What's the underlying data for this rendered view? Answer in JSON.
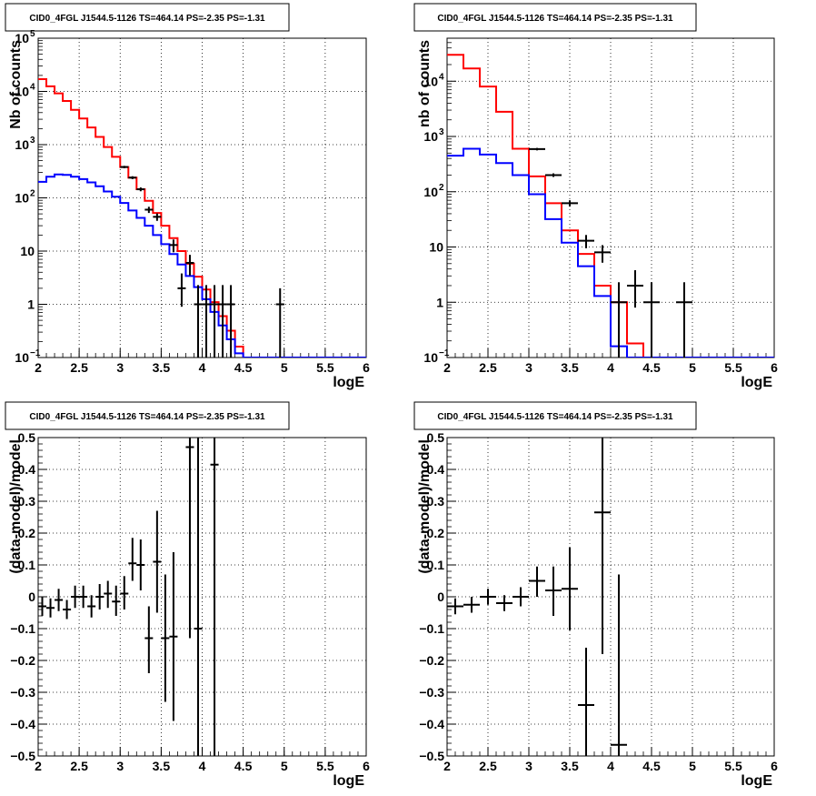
{
  "chart_data": [
    {
      "type": "histogram",
      "title": "CID0_4FGL J1544.5-1126 TS=464.14 PS=-2.35 PS=-1.31",
      "xlabel": "logE",
      "ylabel": "Nb of counts",
      "xlim": [
        2,
        6
      ],
      "ylim": [
        0.1,
        100000
      ],
      "yscale": "log",
      "grid": true,
      "x_ticks": [
        "2",
        "2.5",
        "3",
        "3.5",
        "4",
        "4.5",
        "5",
        "5.5",
        "6"
      ],
      "y_ticks": [
        {
          "value": 0.1,
          "base": "10",
          "exp": "−1"
        },
        {
          "value": 1,
          "base": "1",
          "exp": ""
        },
        {
          "value": 10,
          "base": "10",
          "exp": ""
        },
        {
          "value": 100,
          "base": "10",
          "exp": "2"
        },
        {
          "value": 1000,
          "base": "10",
          "exp": "3"
        },
        {
          "value": 10000,
          "base": "10",
          "exp": "4"
        },
        {
          "value": 100000,
          "base": "10",
          "exp": "5"
        }
      ],
      "bin_edges": [
        2.0,
        2.1,
        2.2,
        2.3,
        2.4,
        2.5,
        2.6,
        2.7,
        2.8,
        2.9,
        3.0,
        3.1,
        3.2,
        3.3,
        3.4,
        3.5,
        3.6,
        3.7,
        3.8,
        3.9,
        4.0,
        4.1,
        4.2,
        4.3,
        4.4,
        4.5,
        4.6,
        4.7,
        4.8,
        4.9,
        5.0,
        5.1,
        5.2,
        5.3,
        5.4,
        5.5,
        5.6,
        5.7,
        5.8,
        5.9,
        6.0
      ],
      "series": [
        {
          "name": "",
          "color": "#ff0000",
          "kind": "step",
          "values": [
            17000,
            12500,
            9200,
            6600,
            4500,
            3100,
            2100,
            1400,
            900,
            590,
            380,
            240,
            145,
            88,
            52,
            30,
            17.5,
            10,
            5.8,
            3.3,
            1.9,
            1.1,
            0.6,
            0.32,
            0.16,
            0.1,
            0.1,
            0.1,
            0.1,
            0.1,
            0.1,
            0.1,
            0.1,
            0.1,
            0.1,
            0.1,
            0.1,
            0.1,
            0.1,
            0.1
          ]
        },
        {
          "name": "",
          "color": "#0000ff",
          "kind": "step",
          "values": [
            200,
            250,
            275,
            270,
            250,
            225,
            195,
            165,
            132,
            105,
            80,
            58,
            42,
            30,
            20,
            13.5,
            8.8,
            5.6,
            3.4,
            2.1,
            1.25,
            0.72,
            0.4,
            0.22,
            0.12,
            0.1,
            0.1,
            0.1,
            0.1,
            0.1,
            0.1,
            0.1,
            0.1,
            0.1,
            0.1,
            0.1,
            0.1,
            0.1,
            0.1,
            0.1
          ]
        },
        {
          "name": "",
          "color": "#000000",
          "kind": "errorbar",
          "points": [
            {
              "x": 3.05,
              "y": 380,
              "lo": 360,
              "hi": 400
            },
            {
              "x": 3.15,
              "y": 240,
              "lo": 225,
              "hi": 255
            },
            {
              "x": 3.25,
              "y": 145,
              "lo": 133,
              "hi": 157
            },
            {
              "x": 3.35,
              "y": 60,
              "lo": 52,
              "hi": 68
            },
            {
              "x": 3.45,
              "y": 44,
              "lo": 37,
              "hi": 51
            },
            {
              "x": 3.65,
              "y": 13,
              "lo": 9.5,
              "hi": 16.5
            },
            {
              "x": 3.75,
              "y": 2,
              "lo": 0.9,
              "hi": 3.8
            },
            {
              "x": 3.85,
              "y": 6,
              "lo": 3.5,
              "hi": 8.5
            },
            {
              "x": 3.95,
              "y": 1,
              "lo": 0.1,
              "hi": 2.3
            },
            {
              "x": 4.05,
              "y": 1,
              "lo": 0.1,
              "hi": 2.3
            },
            {
              "x": 4.15,
              "y": 1,
              "lo": 0.1,
              "hi": 2.3
            },
            {
              "x": 4.25,
              "y": 1,
              "lo": 0.1,
              "hi": 2.3
            },
            {
              "x": 4.35,
              "y": 1,
              "lo": 0.1,
              "hi": 2.3
            },
            {
              "x": 4.95,
              "y": 1,
              "lo": 0.1,
              "hi": 2.0
            }
          ]
        }
      ]
    },
    {
      "type": "histogram",
      "title": "CID0_4FGL J1544.5-1126 TS=464.14 PS=-2.35 PS=-1.31",
      "xlabel": "logE",
      "ylabel": "nb of counts",
      "xlim": [
        2,
        6
      ],
      "ylim": [
        0.1,
        60000
      ],
      "yscale": "log",
      "grid": true,
      "x_ticks": [
        "2",
        "2.5",
        "3",
        "3.5",
        "4",
        "4.5",
        "5",
        "5.5",
        "6"
      ],
      "y_ticks": [
        {
          "value": 0.1,
          "base": "10",
          "exp": "−1"
        },
        {
          "value": 1,
          "base": "1",
          "exp": ""
        },
        {
          "value": 10,
          "base": "10",
          "exp": ""
        },
        {
          "value": 100,
          "base": "10",
          "exp": "2"
        },
        {
          "value": 1000,
          "base": "10",
          "exp": "3"
        },
        {
          "value": 10000,
          "base": "10",
          "exp": "4"
        }
      ],
      "bin_edges": [
        2.0,
        2.2,
        2.4,
        2.6,
        2.8,
        3.0,
        3.2,
        3.4,
        3.6,
        3.8,
        4.0,
        4.2,
        4.4,
        4.6,
        4.8,
        5.0,
        5.2,
        5.4,
        5.6,
        5.8,
        6.0
      ],
      "series": [
        {
          "name": "",
          "color": "#ff0000",
          "kind": "step",
          "values": [
            30000,
            17000,
            8000,
            2800,
            600,
            190,
            62,
            20,
            7.5,
            2.0,
            1.0,
            0.18,
            0.1,
            0.1,
            0.1,
            0.1,
            0.1,
            0.1,
            0.1,
            0.1
          ]
        },
        {
          "name": "",
          "color": "#0000ff",
          "kind": "step",
          "values": [
            450,
            600,
            470,
            330,
            200,
            90,
            32,
            12,
            4.5,
            1.3,
            0.16,
            0.1,
            0.1,
            0.1,
            0.1,
            0.1,
            0.1,
            0.1,
            0.1,
            0.1
          ]
        },
        {
          "name": "",
          "color": "#000000",
          "kind": "errorbar",
          "points": [
            {
              "x": 3.1,
              "y": 590,
              "lo": 560,
              "hi": 620
            },
            {
              "x": 3.3,
              "y": 200,
              "lo": 185,
              "hi": 215
            },
            {
              "x": 3.5,
              "y": 62,
              "lo": 54,
              "hi": 70
            },
            {
              "x": 3.7,
              "y": 13,
              "lo": 9.5,
              "hi": 16.5
            },
            {
              "x": 3.9,
              "y": 8,
              "lo": 5.2,
              "hi": 10.8
            },
            {
              "x": 4.1,
              "y": 1,
              "lo": 0.1,
              "hi": 2.3
            },
            {
              "x": 4.3,
              "y": 2,
              "lo": 0.8,
              "hi": 3.8
            },
            {
              "x": 4.5,
              "y": 1,
              "lo": 0.1,
              "hi": 2.3
            },
            {
              "x": 4.9,
              "y": 1,
              "lo": 0.1,
              "hi": 2.3
            }
          ]
        }
      ]
    },
    {
      "type": "scatter",
      "title": "CID0_4FGL J1544.5-1126 TS=464.14 PS=-2.35 PS=-1.31",
      "xlabel": "logE",
      "ylabel": "(data-model)/model",
      "xlim": [
        2,
        6
      ],
      "ylim": [
        -0.5,
        0.5
      ],
      "grid": true,
      "x_ticks": [
        "2",
        "2.5",
        "3",
        "3.5",
        "4",
        "4.5",
        "5",
        "5.5",
        "6"
      ],
      "y_ticks": [
        "−0.5",
        "−0.4",
        "−0.3",
        "−0.2",
        "−0.1",
        "0",
        "0.1",
        "0.2",
        "0.3",
        "0.4",
        "0.5"
      ],
      "xerr": 0.05,
      "points": [
        {
          "x": 2.05,
          "y": -0.03,
          "lo": -0.06,
          "hi": 0.0
        },
        {
          "x": 2.15,
          "y": -0.035,
          "lo": -0.065,
          "hi": -0.005
        },
        {
          "x": 2.25,
          "y": -0.01,
          "lo": -0.045,
          "hi": 0.025
        },
        {
          "x": 2.35,
          "y": -0.04,
          "lo": -0.07,
          "hi": -0.01
        },
        {
          "x": 2.45,
          "y": 0.0,
          "lo": -0.035,
          "hi": 0.035
        },
        {
          "x": 2.55,
          "y": 0.0,
          "lo": -0.035,
          "hi": 0.035
        },
        {
          "x": 2.65,
          "y": -0.03,
          "lo": -0.065,
          "hi": 0.005
        },
        {
          "x": 2.75,
          "y": 0.0,
          "lo": -0.04,
          "hi": 0.04
        },
        {
          "x": 2.85,
          "y": 0.01,
          "lo": -0.035,
          "hi": 0.05
        },
        {
          "x": 2.95,
          "y": -0.015,
          "lo": -0.06,
          "hi": 0.035
        },
        {
          "x": 3.05,
          "y": 0.01,
          "lo": -0.04,
          "hi": 0.065
        },
        {
          "x": 3.15,
          "y": 0.105,
          "lo": 0.05,
          "hi": 0.185
        },
        {
          "x": 3.25,
          "y": 0.1,
          "lo": 0.02,
          "hi": 0.18
        },
        {
          "x": 3.35,
          "y": -0.13,
          "lo": -0.24,
          "hi": -0.03
        },
        {
          "x": 3.45,
          "y": 0.11,
          "lo": -0.05,
          "hi": 0.27
        },
        {
          "x": 3.55,
          "y": -0.13,
          "lo": -0.33,
          "hi": 0.07
        },
        {
          "x": 3.65,
          "y": -0.125,
          "lo": -0.39,
          "hi": 0.14
        },
        {
          "x": 3.85,
          "y": 0.47,
          "lo": -0.13,
          "hi": 0.5
        },
        {
          "x": 3.95,
          "y": -0.1,
          "lo": -0.5,
          "hi": 0.5
        },
        {
          "x": 4.15,
          "y": 0.415,
          "lo": -0.5,
          "hi": 0.5
        }
      ]
    },
    {
      "type": "scatter",
      "title": "CID0_4FGL J1544.5-1126 TS=464.14 PS=-2.35 PS=-1.31",
      "xlabel": "logE",
      "ylabel": "(data-model)/model",
      "xlim": [
        2,
        6
      ],
      "ylim": [
        -0.5,
        0.5
      ],
      "grid": true,
      "x_ticks": [
        "2",
        "2.5",
        "3",
        "3.5",
        "4",
        "4.5",
        "5",
        "5.5",
        "6"
      ],
      "y_ticks": [
        "−0.5",
        "−0.4",
        "−0.3",
        "−0.2",
        "−0.1",
        "0",
        "0.1",
        "0.2",
        "0.3",
        "0.4",
        "0.5"
      ],
      "xerr": 0.1,
      "points": [
        {
          "x": 2.1,
          "y": -0.03,
          "lo": -0.055,
          "hi": -0.005
        },
        {
          "x": 2.3,
          "y": -0.025,
          "lo": -0.05,
          "hi": 0.0
        },
        {
          "x": 2.5,
          "y": 0.0,
          "lo": -0.025,
          "hi": 0.025
        },
        {
          "x": 2.7,
          "y": -0.02,
          "lo": -0.045,
          "hi": 0.005
        },
        {
          "x": 2.9,
          "y": 0.0,
          "lo": -0.03,
          "hi": 0.03
        },
        {
          "x": 3.1,
          "y": 0.05,
          "lo": 0.0,
          "hi": 0.095
        },
        {
          "x": 3.3,
          "y": 0.02,
          "lo": -0.06,
          "hi": 0.095
        },
        {
          "x": 3.5,
          "y": 0.025,
          "lo": -0.105,
          "hi": 0.155
        },
        {
          "x": 3.7,
          "y": -0.34,
          "lo": -0.5,
          "hi": -0.16
        },
        {
          "x": 3.9,
          "y": 0.265,
          "lo": -0.18,
          "hi": 0.5
        },
        {
          "x": 4.1,
          "y": -0.465,
          "lo": -0.5,
          "hi": 0.07
        }
      ]
    }
  ]
}
